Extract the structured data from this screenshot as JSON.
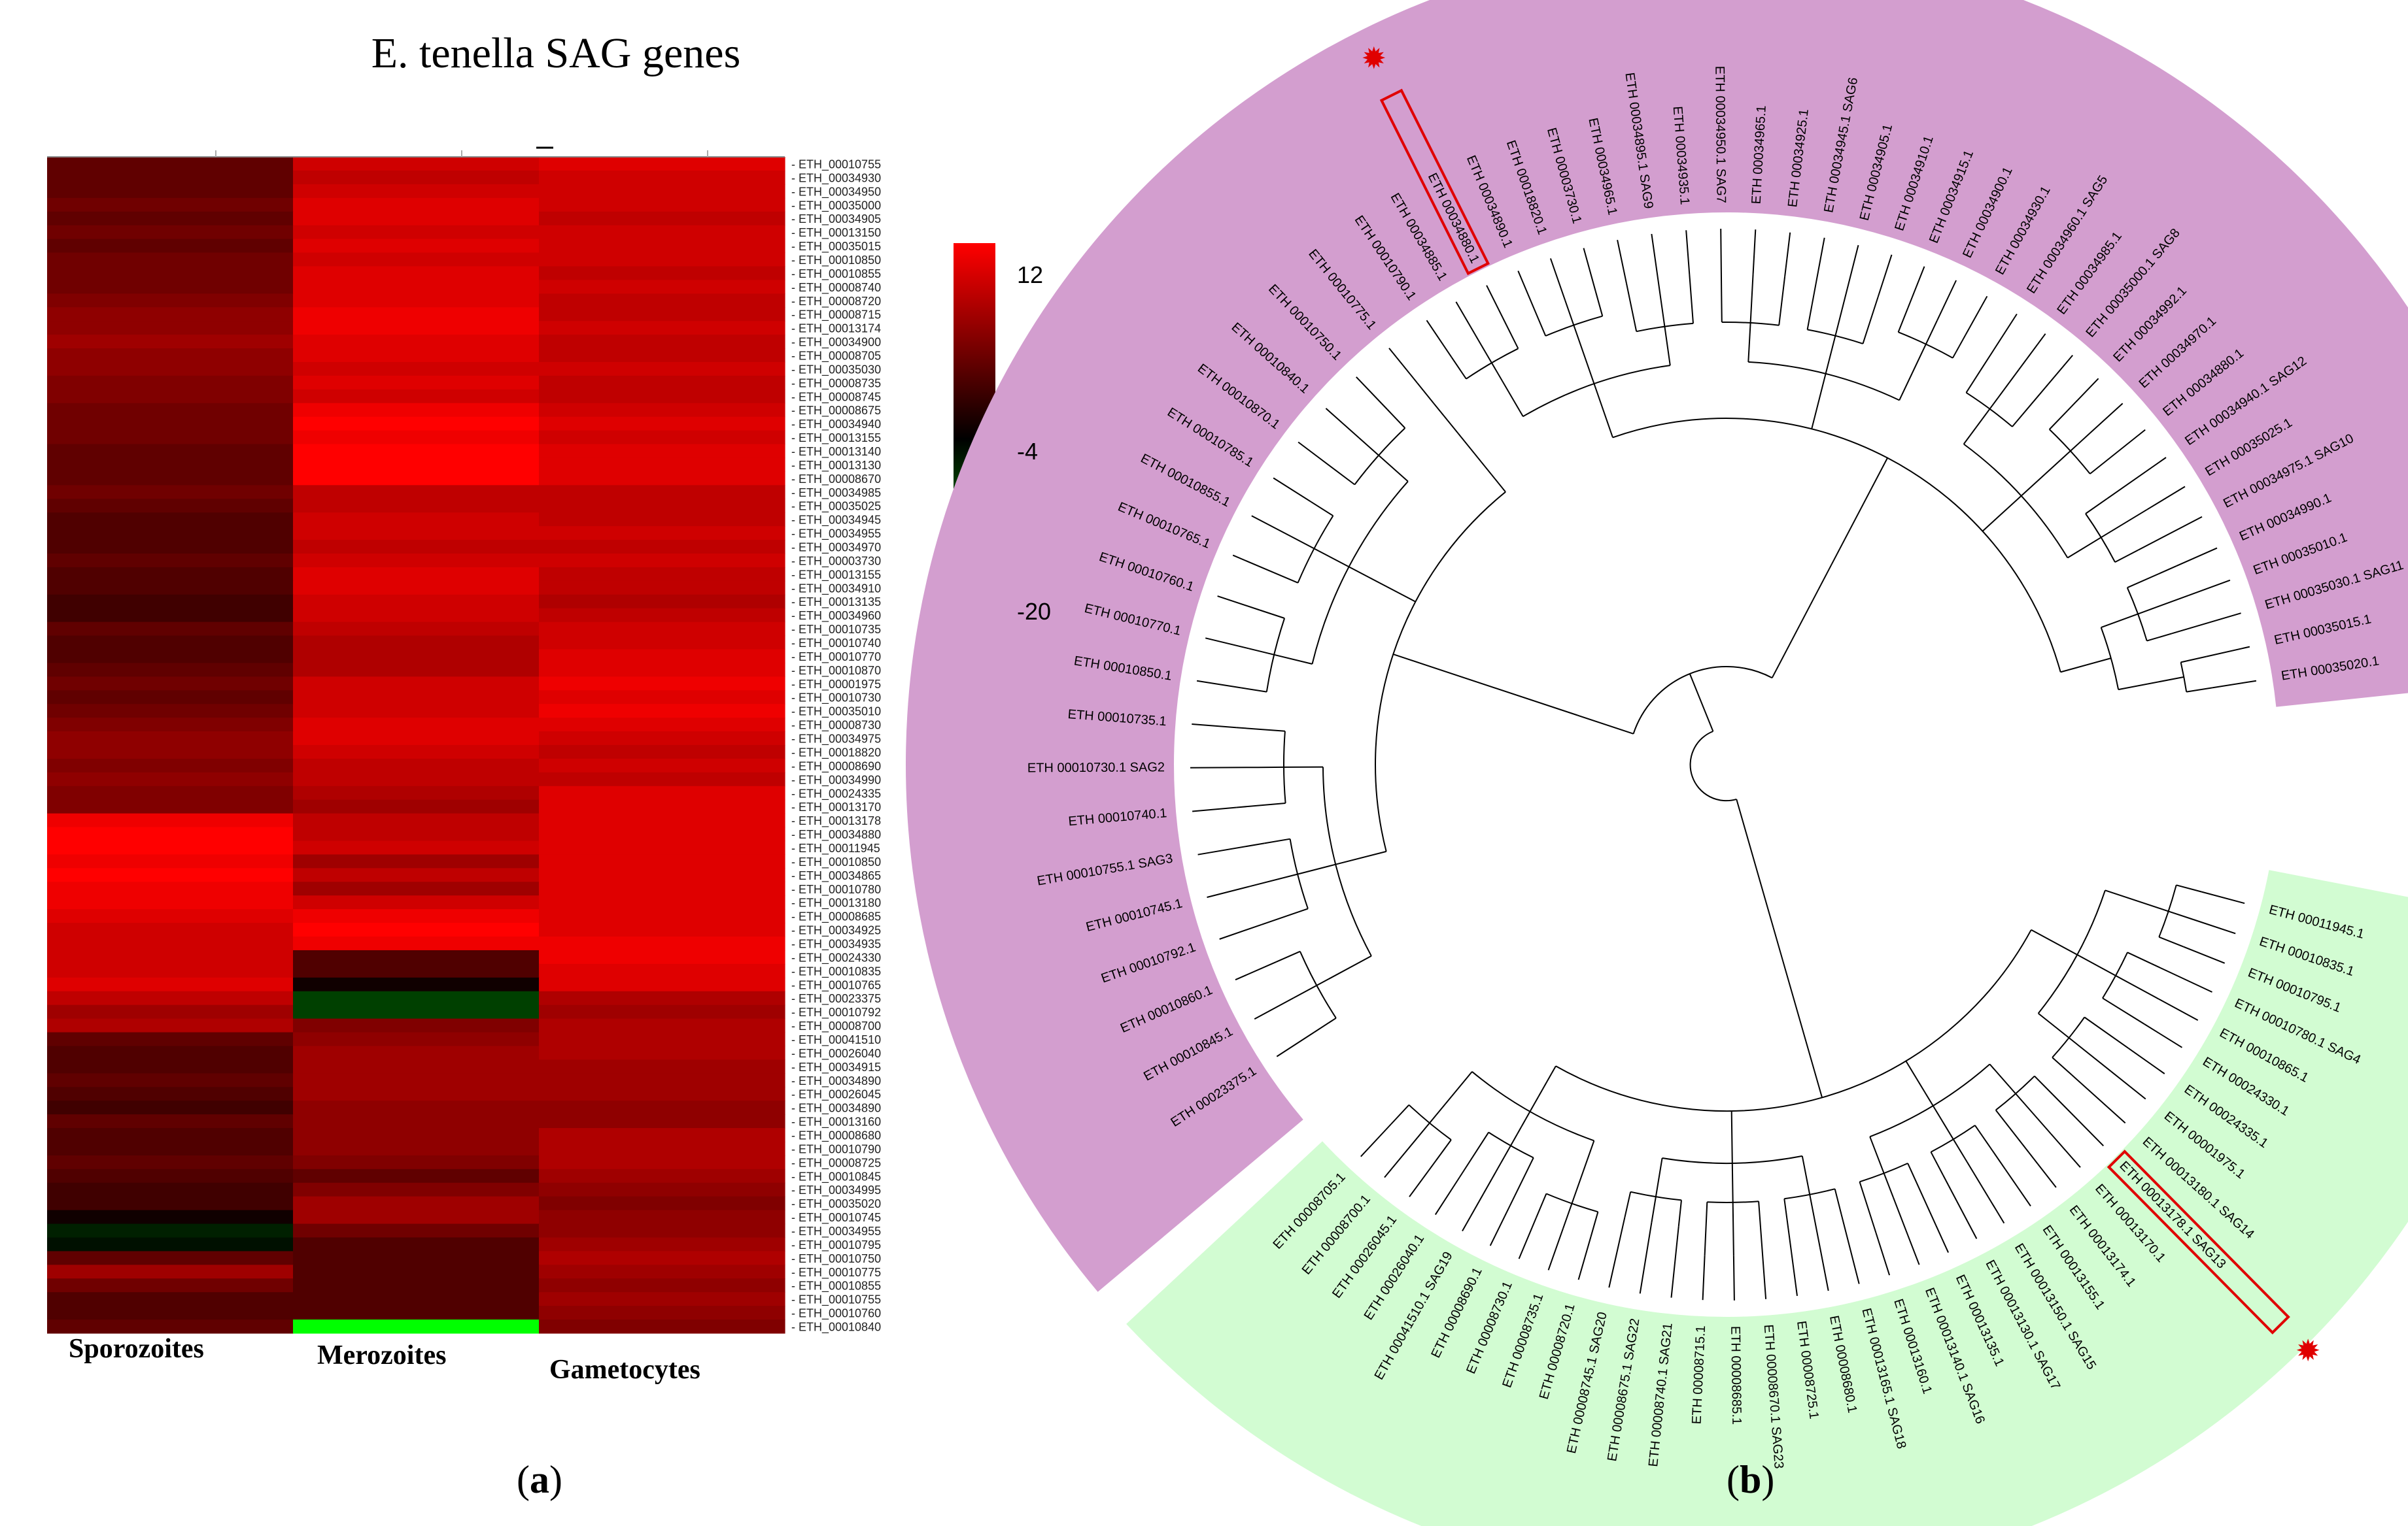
{
  "chart_data": [
    {
      "type": "heatmap",
      "panel_label": "a",
      "title": "E. tenella SAG genes",
      "columns": [
        "Sporozoites",
        "Merozoites",
        "Gametocytes"
      ],
      "rows": [
        "ETH_00010755",
        "ETH_00034930",
        "ETH_00034950",
        "ETH_00035000",
        "ETH_00034905",
        "ETH_00013150",
        "ETH_00035015",
        "ETH_00010850",
        "ETH_00010855",
        "ETH_00008740",
        "ETH_00008720",
        "ETH_00008715",
        "ETH_00013174",
        "ETH_00034900",
        "ETH_00008705",
        "ETH_00035030",
        "ETH_00008735",
        "ETH_00008745",
        "ETH_00008675",
        "ETH_00034940",
        "ETH_00013155",
        "ETH_00013140",
        "ETH_00013130",
        "ETH_00008670",
        "ETH_00034985",
        "ETH_00035025",
        "ETH_00034945",
        "ETH_00034955",
        "ETH_00034970",
        "ETH_00003730",
        "ETH_00013155",
        "ETH_00034910",
        "ETH_00013135",
        "ETH_00034960",
        "ETH_00010735",
        "ETH_00010740",
        "ETH_00010770",
        "ETH_00010870",
        "ETH_00001975",
        "ETH_00010730",
        "ETH_00035010",
        "ETH_00008730",
        "ETH_00034975",
        "ETH_00018820",
        "ETH_00008690",
        "ETH_00034990",
        "ETH_00024335",
        "ETH_00013170",
        "ETH_00013178",
        "ETH_00034880",
        "ETH_00011945",
        "ETH_00010850",
        "ETH_00034865",
        "ETH_00010780",
        "ETH_00013180",
        "ETH_00008685",
        "ETH_00034925",
        "ETH_00034935",
        "ETH_00024330",
        "ETH_00010835",
        "ETH_00010765",
        "ETH_00023375",
        "ETH_00010792",
        "ETH_00008700",
        "ETH_00041510",
        "ETH_00026040",
        "ETH_00034915",
        "ETH_00034890",
        "ETH_00026045",
        "ETH_00034890",
        "ETH_00013160",
        "ETH_00008680",
        "ETH_00010790",
        "ETH_00008725",
        "ETH_00010845",
        "ETH_00034995",
        "ETH_00035020",
        "ETH_00010745",
        "ETH_00034955",
        "ETH_00010795",
        "ETH_00010750",
        "ETH_00010775",
        "ETH_00010855",
        "ETH_00010755",
        "ETH_00010760",
        "ETH_00010840"
      ],
      "values": [
        [
          2,
          9,
          10
        ],
        [
          2,
          8,
          9
        ],
        [
          2,
          9,
          9
        ],
        [
          3,
          10,
          9
        ],
        [
          2,
          10,
          8
        ],
        [
          3,
          9,
          9
        ],
        [
          2,
          10,
          9
        ],
        [
          3,
          9,
          9
        ],
        [
          3,
          10,
          8
        ],
        [
          3,
          10,
          9
        ],
        [
          4,
          10,
          8
        ],
        [
          5,
          11,
          8
        ],
        [
          5,
          11,
          9
        ],
        [
          6,
          10,
          8
        ],
        [
          5,
          10,
          8
        ],
        [
          5,
          9,
          9
        ],
        [
          4,
          10,
          8
        ],
        [
          4,
          9,
          8
        ],
        [
          3,
          11,
          9
        ],
        [
          3,
          12,
          10
        ],
        [
          3,
          11,
          9
        ],
        [
          2,
          12,
          10
        ],
        [
          2,
          13,
          10
        ],
        [
          2,
          13,
          10
        ],
        [
          3,
          8,
          8
        ],
        [
          2,
          8,
          8
        ],
        [
          1,
          9,
          8
        ],
        [
          1,
          9,
          9
        ],
        [
          1,
          8,
          8
        ],
        [
          2,
          9,
          9
        ],
        [
          1,
          10,
          8
        ],
        [
          1,
          10,
          8
        ],
        [
          0,
          9,
          7
        ],
        [
          0,
          9,
          8
        ],
        [
          2,
          8,
          9
        ],
        [
          1,
          7,
          9
        ],
        [
          1,
          7,
          10
        ],
        [
          2,
          7,
          10
        ],
        [
          3,
          9,
          11
        ],
        [
          2,
          9,
          10
        ],
        [
          3,
          9,
          11
        ],
        [
          4,
          10,
          10
        ],
        [
          5,
          10,
          9
        ],
        [
          5,
          9,
          8
        ],
        [
          4,
          8,
          9
        ],
        [
          5,
          8,
          8
        ],
        [
          4,
          7,
          10
        ],
        [
          4,
          6,
          10
        ],
        [
          11,
          8,
          10
        ],
        [
          12,
          8,
          10
        ],
        [
          12,
          9,
          10
        ],
        [
          11,
          6,
          10
        ],
        [
          12,
          8,
          10
        ],
        [
          11,
          6,
          10
        ],
        [
          11,
          9,
          10
        ],
        [
          10,
          11,
          10
        ],
        [
          9,
          12,
          10
        ],
        [
          9,
          11,
          11
        ],
        [
          9,
          1,
          11
        ],
        [
          9,
          1,
          10
        ],
        [
          10,
          -3,
          10
        ],
        [
          8,
          -8,
          7
        ],
        [
          6,
          -8,
          6
        ],
        [
          7,
          4,
          7
        ],
        [
          2,
          5,
          7
        ],
        [
          1,
          6,
          7
        ],
        [
          1,
          6,
          6
        ],
        [
          2,
          6,
          6
        ],
        [
          1,
          6,
          6
        ],
        [
          0,
          5,
          5
        ],
        [
          2,
          5,
          5
        ],
        [
          1,
          5,
          7
        ],
        [
          1,
          5,
          7
        ],
        [
          2,
          4,
          7
        ],
        [
          1,
          2,
          6
        ],
        [
          0,
          4,
          5
        ],
        [
          0,
          6,
          4
        ],
        [
          -3,
          6,
          5
        ],
        [
          -6,
          3,
          5
        ],
        [
          -5,
          1,
          6
        ],
        [
          2,
          1,
          7
        ],
        [
          6,
          1,
          6
        ],
        [
          3,
          1,
          5
        ],
        [
          1,
          1,
          6
        ],
        [
          1,
          1,
          5
        ],
        [
          2,
          -20,
          4
        ]
      ],
      "color_scale": {
        "min": -20,
        "max": 12,
        "ticks": [
          12,
          -4,
          -20
        ],
        "colors": [
          "#00ff00",
          "#000000",
          "#ff0000"
        ]
      },
      "annotations": [
        "*",
        "*"
      ]
    },
    {
      "type": "circular-tree",
      "panel_label": "b",
      "clades": [
        {
          "name": "purple",
          "color": "#d39ecf",
          "leaves": [
            "ETH 00010790.1",
            "ETH 00034885.1",
            "ETH 00034880.1",
            "ETH 00034890.1",
            "ETH 00018820.1",
            "ETH 00003730.1",
            "ETH 00034965.1",
            "ETH 00034895.1 SAG9",
            "ETH 00034935.1",
            "ETH 00034950.1 SAG7",
            "ETH 00034965.1",
            "ETH 00034925.1",
            "ETH 00034945.1 SAG6",
            "ETH 00034905.1",
            "ETH 00034910.1",
            "ETH 00034915.1",
            "ETH 00034900.1",
            "ETH 00034930.1",
            "ETH 00034960.1 SAG5",
            "ETH 00034985.1",
            "ETH 00035000.1 SAG8",
            "ETH 00034992.1",
            "ETH 00034970.1",
            "ETH 00034880.1",
            "ETH 00034940.1 SAG12",
            "ETH 00035025.1",
            "ETH 00034975.1 SAG10",
            "ETH 00034990.1",
            "ETH 00035010.1",
            "ETH 00035030.1 SAG11",
            "ETH 00035015.1",
            "ETH 00035020.1",
            "ETH 00023375.1",
            "ETH 00010845.1",
            "ETH 00010860.1",
            "ETH 00010792.1",
            "ETH 00010745.1",
            "ETH 00010755.1 SAG3",
            "ETH 00010740.1",
            "ETH 00010730.1 SAG2",
            "ETH 00010735.1",
            "ETH 00010850.1",
            "ETH 00010770.1",
            "ETH 00010760.1",
            "ETH 00010765.1",
            "ETH 00010855.1",
            "ETH 00010785.1",
            "ETH 00010870.1",
            "ETH 00010840.1",
            "ETH 00010750.1",
            "ETH 00010775.1"
          ]
        },
        {
          "name": "green",
          "color": "#d2fcd2",
          "leaves": [
            "ETH 00011945.1",
            "ETH 00010835.1",
            "ETH 00010795.1",
            "ETH 00010780.1 SAG4",
            "ETH 00010865.1",
            "ETH 00024330.1",
            "ETH 00024335.1",
            "ETH 00001975.1",
            "ETH 00013180.1 SAG14",
            "ETH 00013178.1 SAG13",
            "ETH 00013170.1",
            "ETH 00013174.1",
            "ETH 00013155.1",
            "ETH 00013150.1 SAG15",
            "ETH 00013130.1 SAG17",
            "ETH 00013135.1",
            "ETH 00013140.1 SAG16",
            "ETH 00013160.1",
            "ETH 00013165.1 SAG18",
            "ETH 00008680.1",
            "ETH 00008725.1",
            "ETH 00008670.1 SAG23",
            "ETH 00008685.1",
            "ETH 00008715.1",
            "ETH 00008740.1 SAG21",
            "ETH 00008675.1 SAG22",
            "ETH 00008745.1 SAG20",
            "ETH 00008720.1",
            "ETH 00008735.1",
            "ETH 00008730.1",
            "ETH 00008690.1",
            "ETH 00041510.1 SAG19",
            "ETH 00026040.1",
            "ETH 00026045.1",
            "ETH 00008700.1",
            "ETH 00008705.1"
          ]
        }
      ],
      "highlighted": [
        "ETH 00034880.1",
        "ETH 00013178.1 SAG13"
      ]
    }
  ],
  "condition_labels": [
    "Sporozoites",
    "Merozoites",
    "Gametocytes"
  ],
  "panel_labels": [
    "a",
    "b"
  ],
  "heatmap_title": "E. tenella SAG genes",
  "scale_ticks": [
    "12",
    "-4",
    "-20"
  ]
}
